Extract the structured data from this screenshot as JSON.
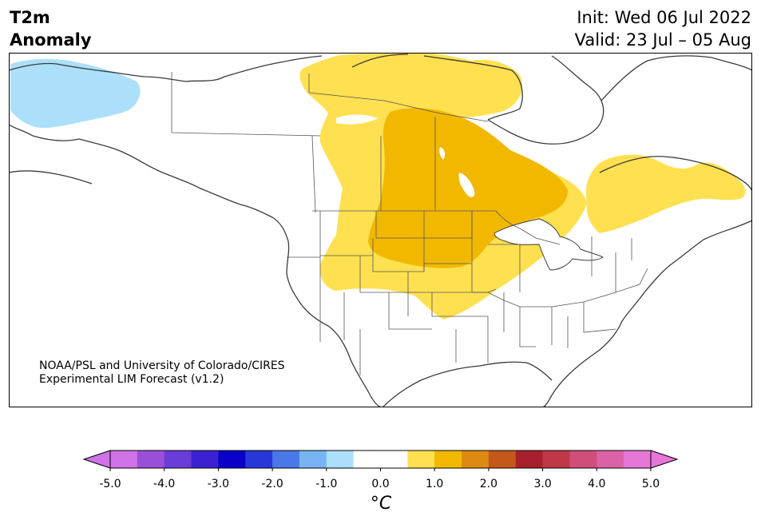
{
  "title": {
    "line1": "T2m",
    "line2": "Anomaly"
  },
  "init": "Init: Wed 06 Jul 2022",
  "valid": "Valid: 23 Jul – 05 Aug",
  "credit": {
    "line1": "NOAA/PSL and University of Colorado/CIRES",
    "line2": "Experimental LIM Forecast (v1.2)"
  },
  "colorbar": {
    "ticks": [
      "-5.0",
      "-4.0",
      "-3.0",
      "-2.0",
      "-1.0",
      "0.0",
      "1.0",
      "2.0",
      "3.0",
      "4.0",
      "5.0"
    ],
    "units": "°C",
    "colors": [
      "#d072e8",
      "#9a4fd8",
      "#6a3cd8",
      "#3a20d0",
      "#0a00c8",
      "#2838d8",
      "#4a78e8",
      "#78b4f4",
      "#ace0fa",
      "#ffffff",
      "#ffffff",
      "#ffe050",
      "#f2b800",
      "#de8a10",
      "#c45818",
      "#a8202a",
      "#c03848",
      "#d04e7a",
      "#dc62a8",
      "#e676d8"
    ],
    "extend_low_color": "#d072e8",
    "extend_high_color": "#e676d8"
  },
  "anomaly_regions": [
    {
      "name": "cool-anomaly-alaska",
      "level_c": -1.0,
      "color": "#ace0fa"
    },
    {
      "name": "warm-anomaly-plains-canada",
      "level_c": 1.0,
      "color": "#ffe050"
    },
    {
      "name": "warm-anomaly-quebec",
      "level_c": 1.0,
      "color": "#ffe050"
    },
    {
      "name": "warm-anomaly-core",
      "level_c": 1.5,
      "color": "#f2b800"
    }
  ],
  "colors": {
    "coast": "#3a3a3a",
    "border": "#555555",
    "frame": "#000000"
  }
}
